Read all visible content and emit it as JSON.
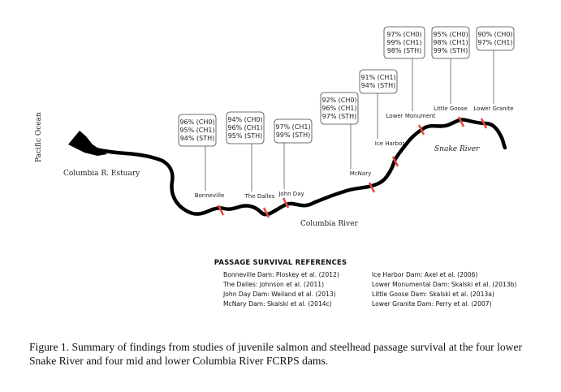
{
  "labels": {
    "ocean": "Pacific Ocean",
    "estuary": "Columbia R. Estuary",
    "columbia_river": "Columbia River",
    "snake_river": "Snake River"
  },
  "dams": [
    {
      "name": "Bonneville",
      "stats": [
        "96% (CH0)",
        "95% (CH1)",
        "94% (STH)"
      ]
    },
    {
      "name": "The Dalles",
      "stats": [
        "94% (CH0)",
        "96% (CH1)",
        "95% (STH)"
      ]
    },
    {
      "name": "John Day",
      "stats": [
        "97% (CH1)",
        "99% (STH)"
      ]
    },
    {
      "name": "McNary",
      "stats": [
        "92% (CH0)",
        "96% (CH1)",
        "97% (STH)"
      ]
    },
    {
      "name": "Ice Harbor",
      "stats": [
        "91% (CH1)",
        "94% (STH)"
      ]
    },
    {
      "name": "Lower Monument",
      "stats": [
        "97% (CH0)",
        "99% (CH1)",
        "98% (STH)"
      ]
    },
    {
      "name": "Little Goose",
      "stats": [
        "95% (CH0)",
        "98% (CH1)",
        "99% (STH)"
      ]
    },
    {
      "name": "Lower Granite",
      "stats": [
        "90% (CH0)",
        "97% (CH1)"
      ]
    }
  ],
  "references": {
    "title": "PASSAGE SURVIVAL REFERENCES",
    "left": [
      "Bonneville Dam: Ploskey et al. (2012)",
      "The Dalles: Johnson et al. (2011)",
      "John Day Dam: Weiland et al. (2013)",
      "McNary Dam: Skalski et al. (2014c)"
    ],
    "right": [
      "Ice Harbor Dam: Axel et al. (2006)",
      "Lower Monumental Dam: Skalski et al. (2013b)",
      "Little Goose Dam: Skalski et al. (2013a)",
      "Lower Granite Dam: Perry et al. (2007)"
    ]
  },
  "caption": "Figure 1. Summary of findings from studies of juvenile salmon and steelhead passage survival at the four lower Snake River and four mid and lower Columbia River FCRPS dams.",
  "colors": {
    "river": "#000000",
    "dam_marker": "#e8453c",
    "box_border": "#444444"
  }
}
